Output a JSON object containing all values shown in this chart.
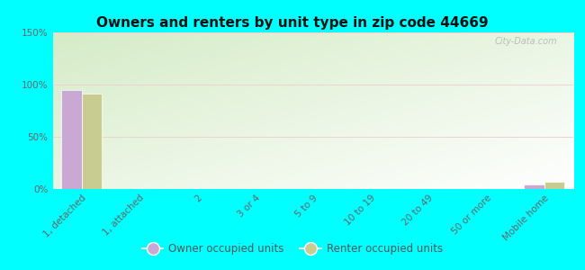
{
  "title": "Owners and renters by unit type in zip code 44669",
  "categories": [
    "1, detached",
    "1, attached",
    "2",
    "3 or 4",
    "5 to 9",
    "10 to 19",
    "20 to 49",
    "50 or more",
    "Mobile home"
  ],
  "owner_values": [
    95,
    0,
    0,
    0,
    0,
    0,
    0,
    0,
    4
  ],
  "renter_values": [
    91,
    0,
    0,
    0,
    0,
    0,
    0,
    0,
    7
  ],
  "owner_color": "#c9a8d4",
  "renter_color": "#c8cc90",
  "background_color": "#00ffff",
  "ylim": [
    0,
    150
  ],
  "yticks": [
    0,
    50,
    100,
    150
  ],
  "ytick_labels": [
    "0%",
    "50%",
    "100%",
    "150%"
  ],
  "watermark": "City-Data.com",
  "legend_owner": "Owner occupied units",
  "legend_renter": "Renter occupied units",
  "bar_width": 0.35,
  "grad_color_top": "#d6ecc8",
  "grad_color_bottom": "#f5fbf0"
}
